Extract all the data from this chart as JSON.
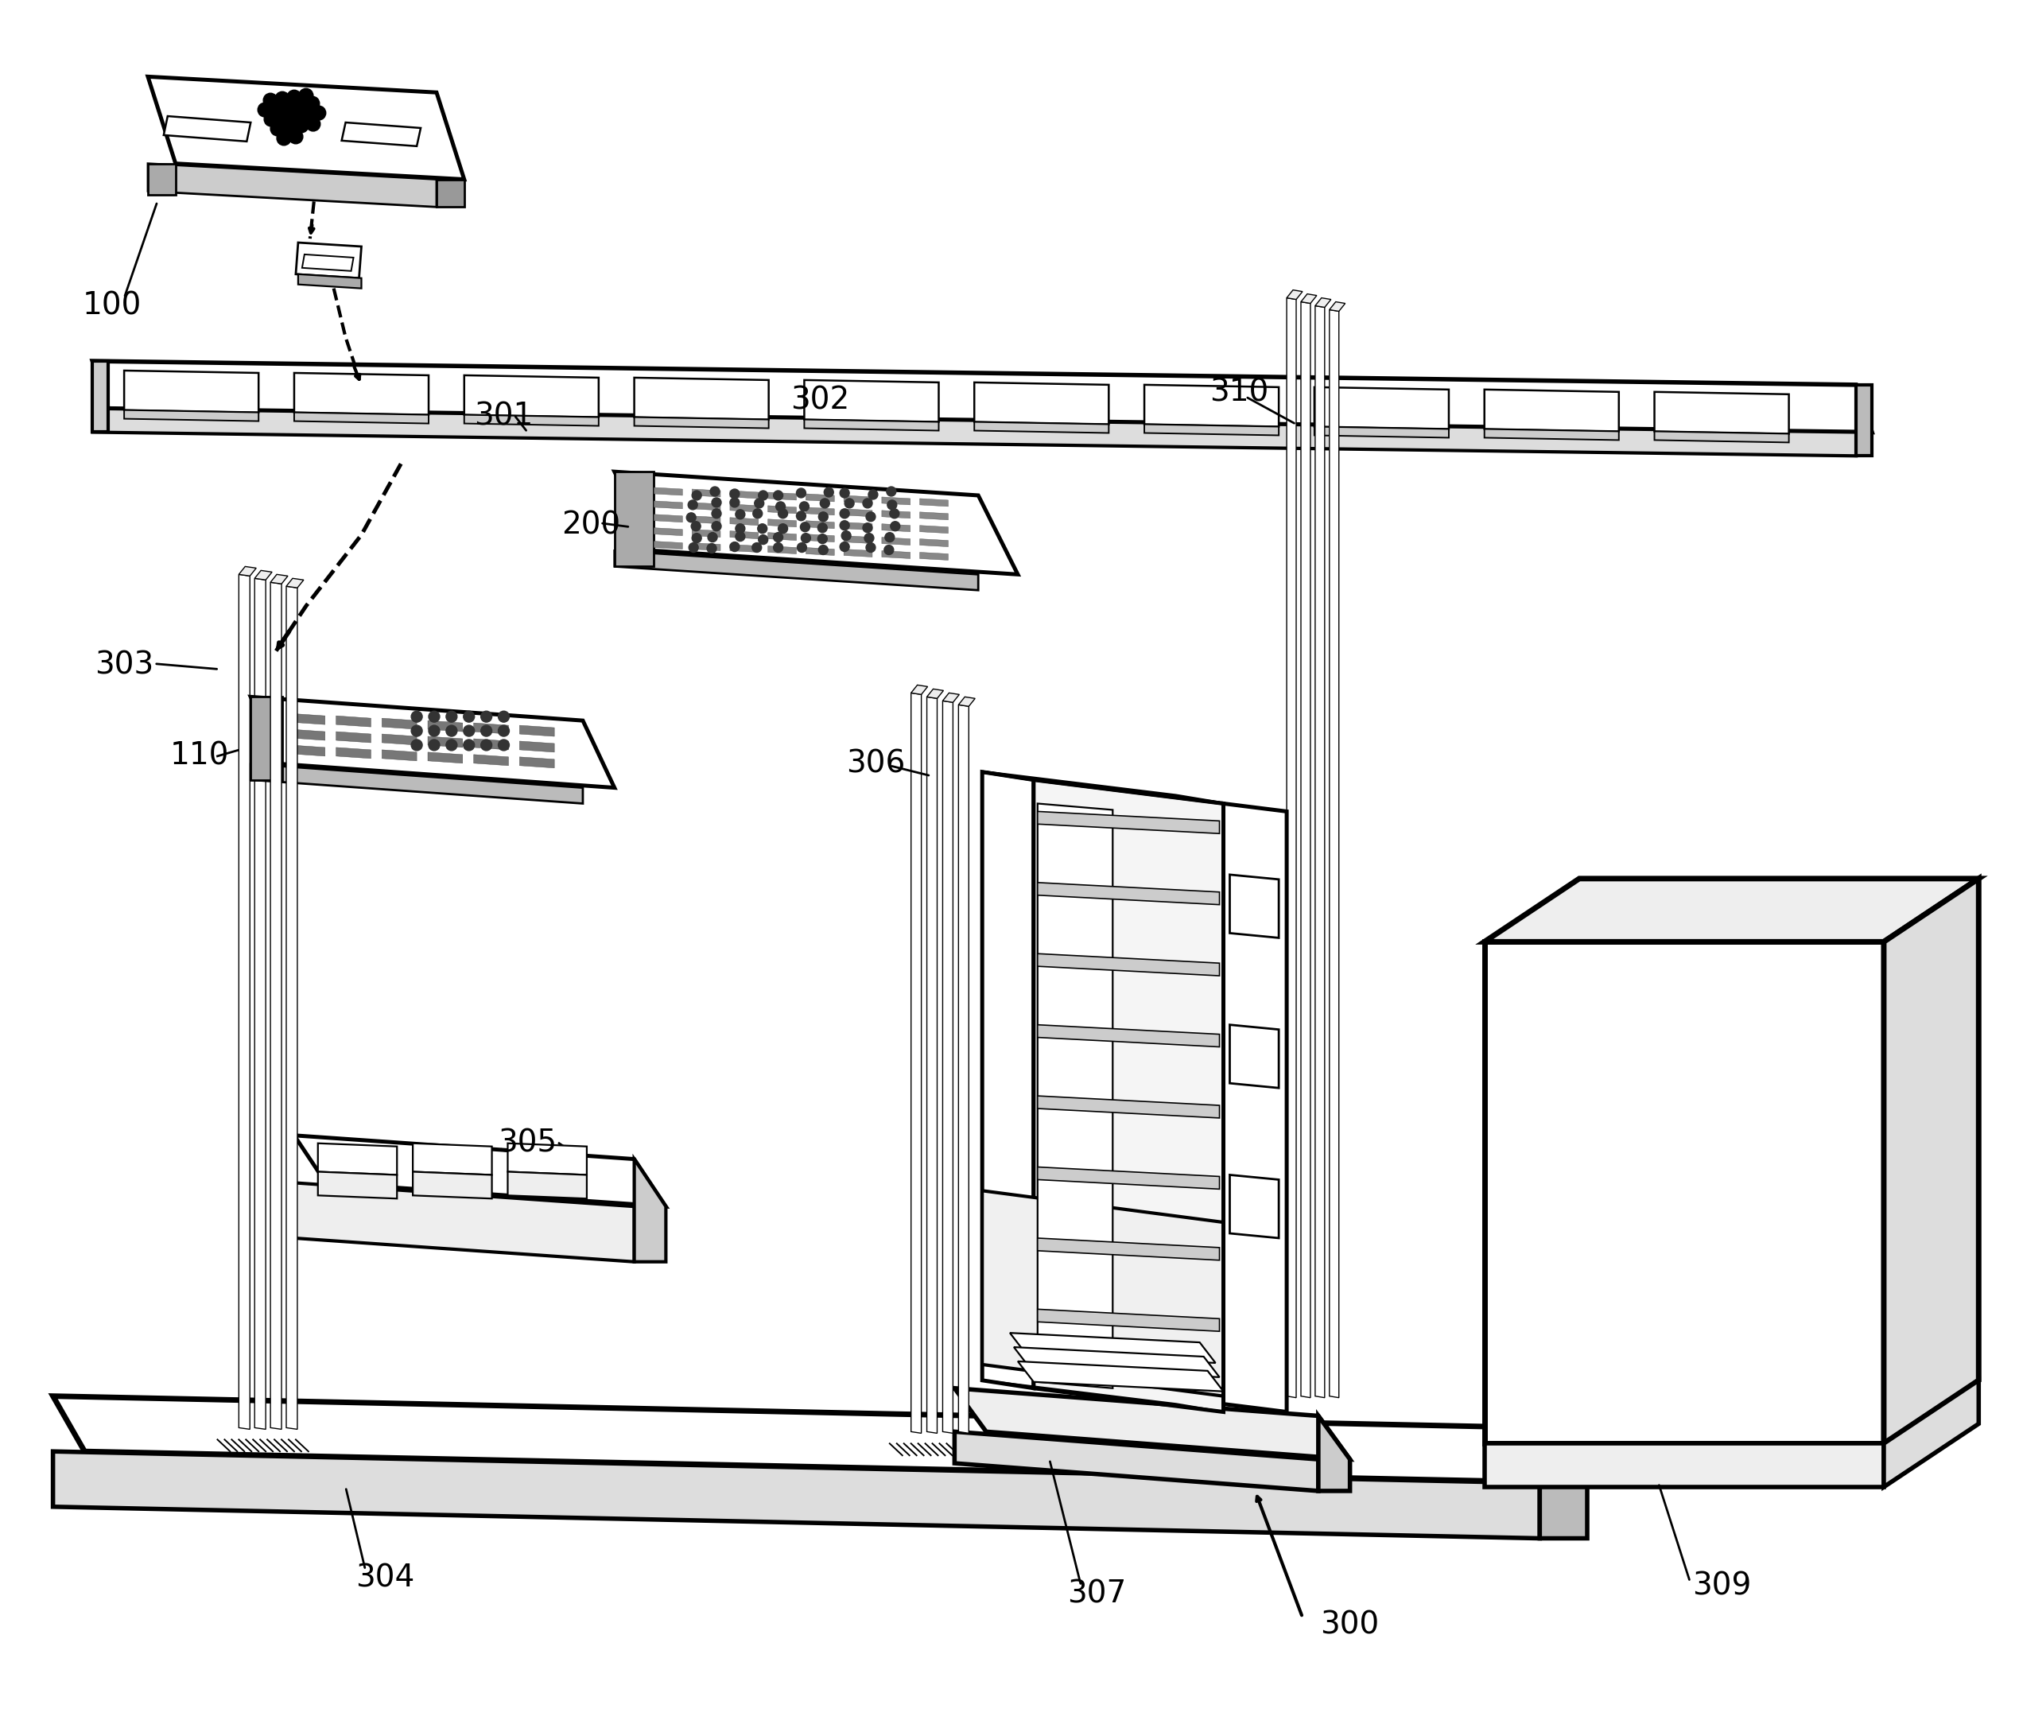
{
  "bg_color": "#ffffff",
  "lc": "#000000",
  "lw": 2.0,
  "lfs": 28
}
